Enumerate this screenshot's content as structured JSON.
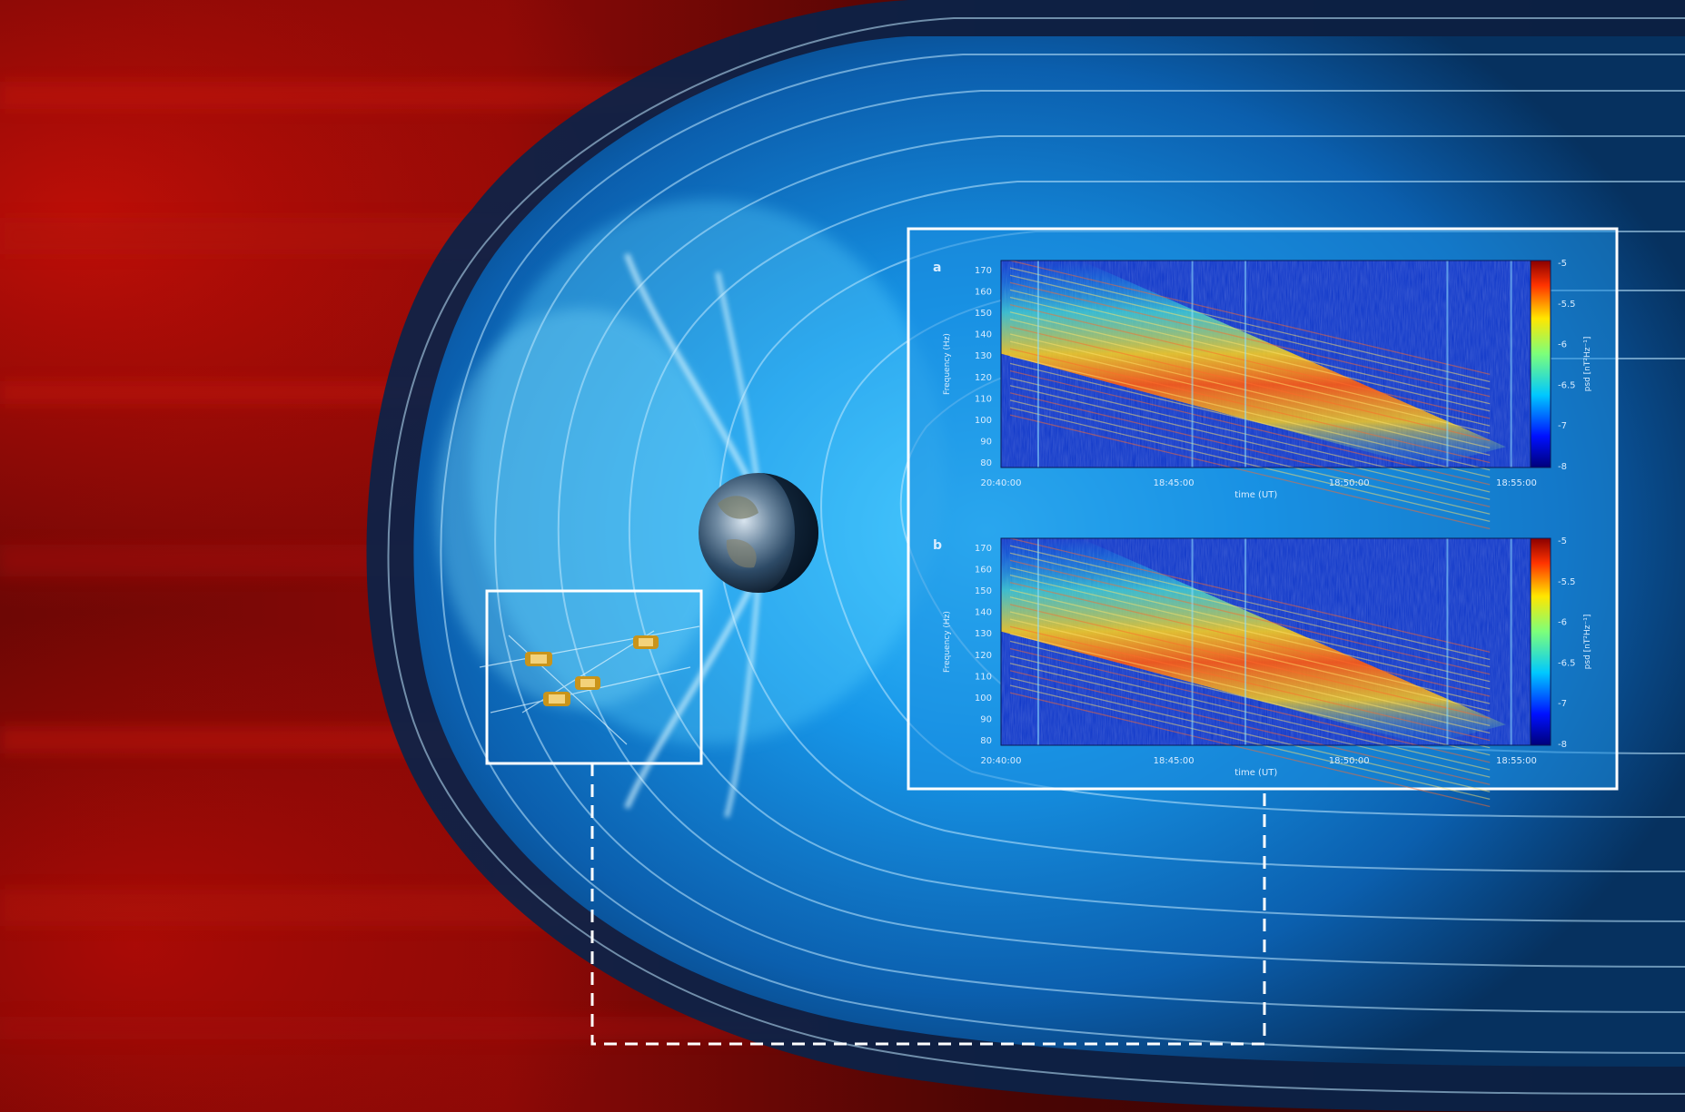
{
  "colors": {
    "solar_wind": "#9a0a06",
    "magnetosphere": "#1aa7ff",
    "frame": "#ffffff",
    "inset_bg": "#1c8fe0"
  },
  "panels": [
    {
      "letter": "a",
      "y_label": "Frequency (Hz)",
      "y_ticks": [
        "170",
        "160",
        "150",
        "140",
        "130",
        "120",
        "110",
        "100",
        "90",
        "80"
      ],
      "x_label": "time (UT)",
      "x_ticks": [
        "20:40:00",
        "18:45:00",
        "18:50:00",
        "18:55:00"
      ],
      "cbar_label": "psd [nT²Hz⁻¹]",
      "cbar_ticks": [
        "-5",
        "-5.5",
        "-6",
        "-6.5",
        "-7",
        "-8"
      ]
    },
    {
      "letter": "b",
      "y_label": "Frequency (Hz)",
      "y_ticks": [
        "170",
        "160",
        "150",
        "140",
        "130",
        "120",
        "110",
        "100",
        "90",
        "80"
      ],
      "x_label": "time (UT)",
      "x_ticks": [
        "20:40:00",
        "18:45:00",
        "18:50:00",
        "18:55:00"
      ],
      "cbar_label": "psd [nT²Hz⁻¹]",
      "cbar_ticks": [
        "-5",
        "-5.5",
        "-6",
        "-6.5",
        "-7",
        "-8"
      ]
    }
  ]
}
